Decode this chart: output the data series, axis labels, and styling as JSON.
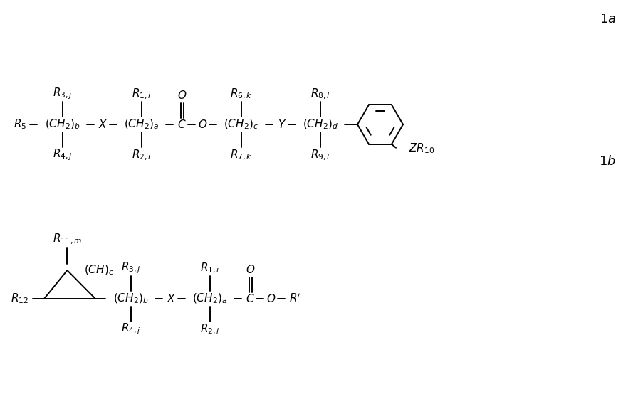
{
  "bg_color": "#ffffff",
  "line_color": "#000000",
  "text_color": "#000000",
  "font_size_main": 11,
  "font_size_label": 13,
  "fig_width": 8.96,
  "fig_height": 5.75,
  "dpi": 100
}
